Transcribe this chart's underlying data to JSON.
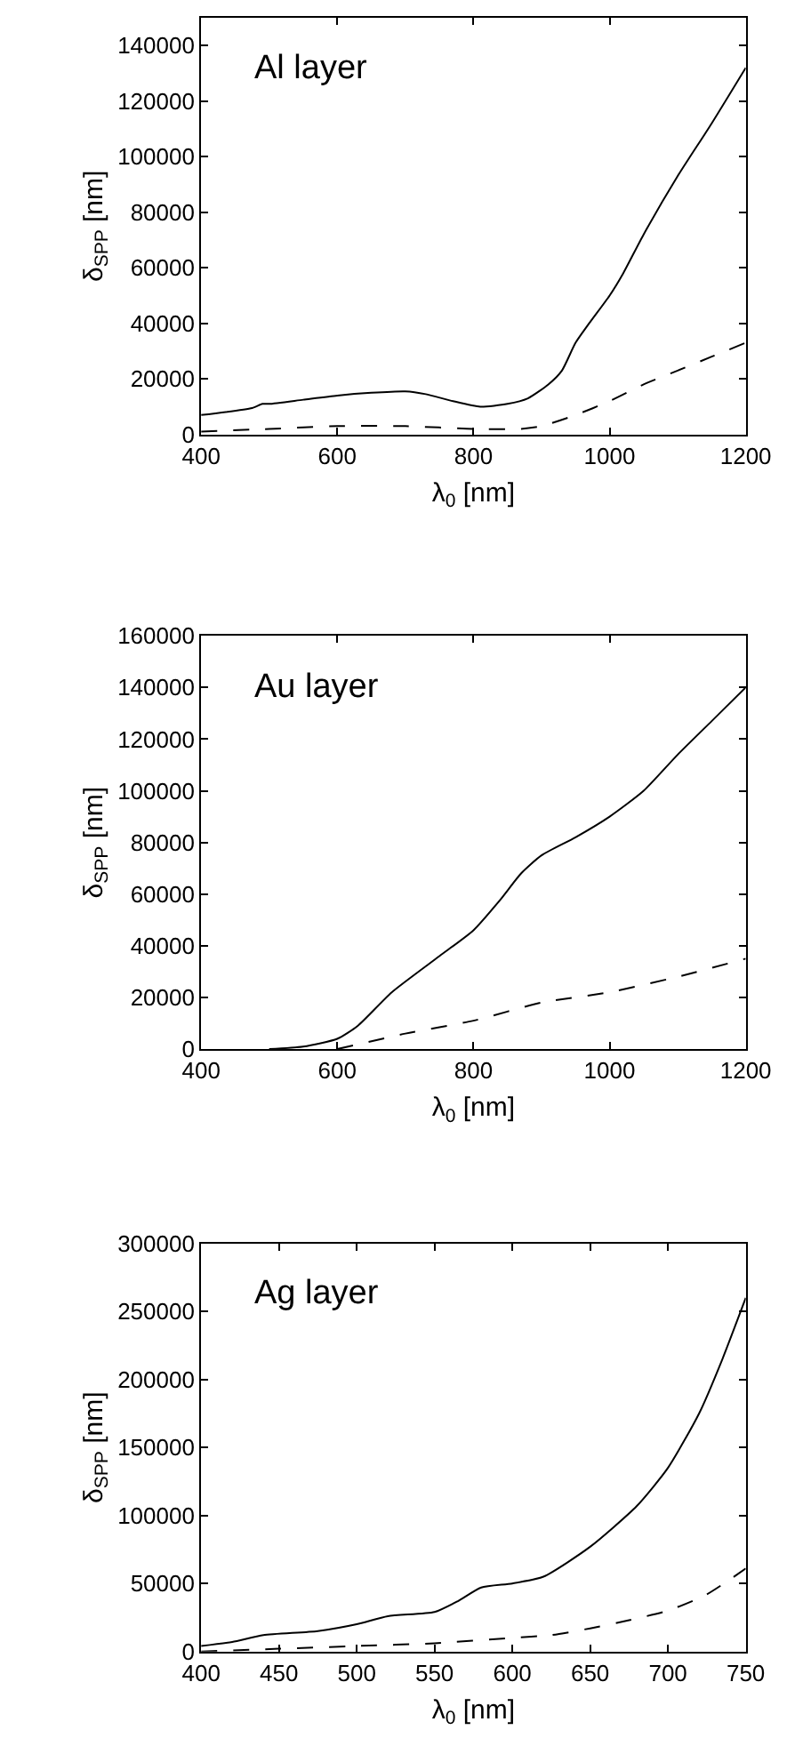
{
  "chart_data": [
    {
      "type": "line",
      "annotations": [
        "Al layer"
      ],
      "xlabel": "λ$_{0}$ [nm]",
      "ylabel": "δ$_{SPP}$ [nm]",
      "xlim": [
        400,
        1200
      ],
      "xticks": [
        400,
        600,
        800,
        1000,
        1200
      ],
      "ylim": [
        0,
        150000
      ],
      "yticks": [
        0,
        20000,
        40000,
        60000,
        80000,
        100000,
        120000,
        140000
      ],
      "marker": "none",
      "series": [
        {
          "color": "#000000",
          "line_style": "solid",
          "x": [
            400,
            475,
            490,
            500,
            550,
            600,
            650,
            700,
            730,
            770,
            810,
            850,
            880,
            910,
            930,
            950,
            970,
            1000,
            1020,
            1050,
            1100,
            1150,
            1200
          ],
          "values": [
            7000,
            9500,
            11000,
            11000,
            12500,
            14000,
            15000,
            15500,
            14500,
            12000,
            10000,
            11000,
            13000,
            18000,
            23000,
            33000,
            40000,
            50000,
            58000,
            72000,
            93000,
            112000,
            132000
          ]
        },
        {
          "color": "#000000",
          "line_style": "dashed",
          "x": [
            400,
            500,
            600,
            700,
            800,
            870,
            900,
            950,
            1000,
            1050,
            1100,
            1150,
            1200
          ],
          "values": [
            1000,
            2000,
            3000,
            3000,
            2000,
            2000,
            3000,
            7000,
            12000,
            18000,
            23000,
            28000,
            33000
          ]
        }
      ]
    },
    {
      "type": "line",
      "annotations": [
        "Au layer"
      ],
      "xlabel": "λ$_{0}$ [nm]",
      "ylabel": "δ$_{SPP}$ [nm]",
      "xlim": [
        400,
        1200
      ],
      "xticks": [
        400,
        600,
        800,
        1000,
        1200
      ],
      "ylim": [
        0,
        160000
      ],
      "yticks": [
        0,
        20000,
        40000,
        60000,
        80000,
        100000,
        120000,
        140000,
        160000
      ],
      "marker": "none",
      "series": [
        {
          "color": "#000000",
          "line_style": "solid",
          "x": [
            500,
            550,
            600,
            630,
            680,
            750,
            800,
            840,
            870,
            900,
            950,
            1000,
            1050,
            1100,
            1150,
            1200
          ],
          "values": [
            0,
            1000,
            4000,
            9000,
            22000,
            36000,
            46000,
            58000,
            68000,
            75000,
            82000,
            90000,
            100000,
            114000,
            127000,
            140000
          ]
        },
        {
          "color": "#000000",
          "line_style": "dashed",
          "x": [
            600,
            700,
            800,
            900,
            1000,
            1100,
            1200
          ],
          "values": [
            0,
            6000,
            11000,
            18000,
            22000,
            28000,
            35000
          ]
        }
      ]
    },
    {
      "type": "line",
      "annotations": [
        "Ag layer"
      ],
      "xlabel": "λ$_{0}$ [nm]",
      "ylabel": "δ$_{SPP}$ [nm]",
      "xlim": [
        400,
        750
      ],
      "xticks": [
        400,
        450,
        500,
        550,
        600,
        650,
        700,
        750
      ],
      "ylim": [
        0,
        300000
      ],
      "yticks": [
        0,
        50000,
        100000,
        150000,
        200000,
        250000,
        300000
      ],
      "marker": "none",
      "series": [
        {
          "color": "#000000",
          "line_style": "solid",
          "x": [
            400,
            420,
            440,
            475,
            500,
            520,
            550,
            565,
            580,
            600,
            620,
            650,
            680,
            700,
            720,
            735,
            750
          ],
          "values": [
            4000,
            7000,
            12000,
            15000,
            20000,
            26000,
            29000,
            37000,
            47000,
            50000,
            55000,
            77000,
            107000,
            135000,
            175000,
            215000,
            260000
          ]
        },
        {
          "color": "#000000",
          "line_style": "dashed",
          "x": [
            400,
            450,
            500,
            550,
            600,
            625,
            650,
            675,
            700,
            725,
            750
          ],
          "values": [
            0,
            2000,
            4000,
            6000,
            10000,
            12000,
            17000,
            23000,
            30000,
            42000,
            61000
          ]
        }
      ]
    }
  ]
}
